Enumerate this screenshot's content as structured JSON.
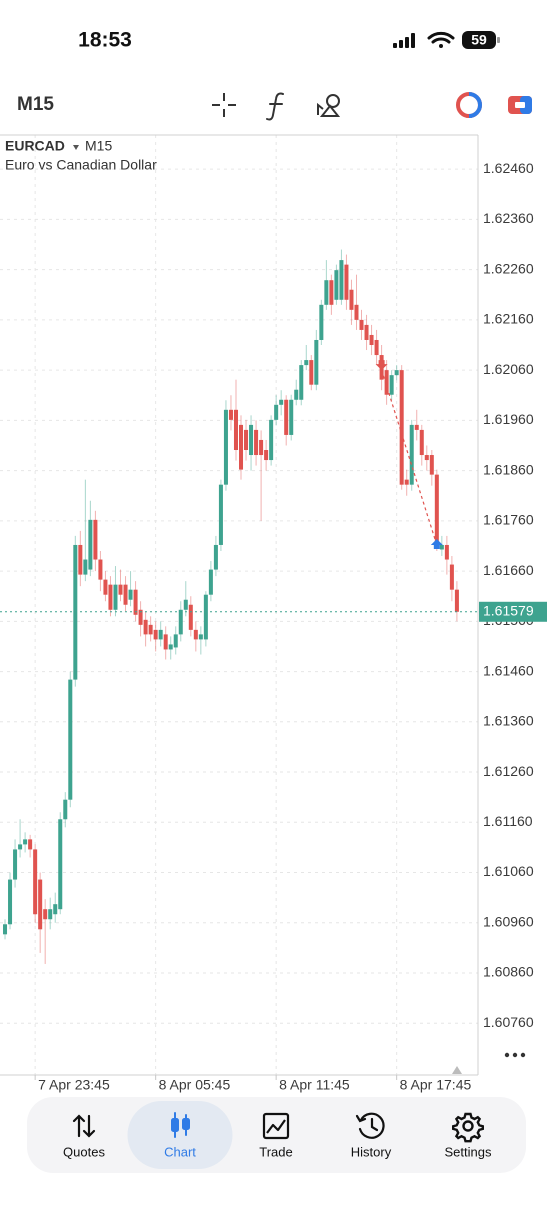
{
  "status_bar": {
    "time": "18:53",
    "battery": "59"
  },
  "toolbar": {
    "timeframe": "M15"
  },
  "chart_data": {
    "type": "candlestick",
    "symbol": "EURCAD",
    "timeframe": "M15",
    "description": "Euro vs Canadian Dollar",
    "up_color": "#3ea38f",
    "down_color": "#e0534f",
    "open": [
      1.60937,
      1.60957,
      1.61046,
      1.61106,
      1.61116,
      1.61126,
      1.61106,
      1.61046,
      1.60987,
      1.60967,
      1.60977,
      1.60987,
      1.61166,
      1.61205,
      1.61444,
      1.61712,
      1.61653,
      1.61663,
      1.61762,
      1.61683,
      1.61643,
      1.61633,
      1.61583,
      1.61633,
      1.61633,
      1.61603,
      1.61623,
      1.61583,
      1.61563,
      1.61553,
      1.61543,
      1.61524,
      1.61534,
      1.61504,
      1.61508,
      1.61534,
      1.61583,
      1.61593,
      1.61543,
      1.61524,
      1.61524,
      1.61613,
      1.61663,
      1.61712,
      1.61832,
      1.61981,
      1.61981,
      1.61951,
      1.61941,
      1.61891,
      1.61941,
      1.61921,
      1.61901,
      1.61881,
      1.61961,
      1.61991,
      1.62001,
      1.61931,
      1.62001,
      1.62001,
      1.6207,
      1.6208,
      1.62031,
      1.6212,
      1.6219,
      1.62239,
      1.622,
      1.622,
      1.6227,
      1.6222,
      1.6219,
      1.6216,
      1.6215,
      1.6213,
      1.6212,
      1.6209,
      1.6206,
      1.62011,
      1.6205,
      1.6206,
      1.61842,
      1.61832,
      1.61951,
      1.61941,
      1.61891,
      1.61891,
      1.61852,
      1.61703,
      1.61712,
      1.61673,
      1.61623
    ],
    "high": [
      1.60967,
      1.6106,
      1.61126,
      1.61166,
      1.6114,
      1.61135,
      1.61116,
      1.6106,
      1.61007,
      1.6101,
      1.6102,
      1.6118,
      1.6122,
      1.6146,
      1.6173,
      1.6174,
      1.61842,
      1.618,
      1.6178,
      1.617,
      1.6166,
      1.6165,
      1.6167,
      1.61663,
      1.6165,
      1.6166,
      1.6164,
      1.616,
      1.6158,
      1.6157,
      1.6156,
      1.6156,
      1.6155,
      1.6153,
      1.6155,
      1.616,
      1.6164,
      1.6161,
      1.6156,
      1.6155,
      1.6162,
      1.6168,
      1.6173,
      1.61842,
      1.62,
      1.6201,
      1.62041,
      1.6197,
      1.61961,
      1.6197,
      1.6196,
      1.6194,
      1.61921,
      1.6197,
      1.6201,
      1.6202,
      1.6201,
      1.62011,
      1.62041,
      1.6208,
      1.6211,
      1.6209,
      1.6214,
      1.622,
      1.62279,
      1.6225,
      1.6227,
      1.623,
      1.6229,
      1.6224,
      1.6225,
      1.6218,
      1.6217,
      1.6215,
      1.6214,
      1.6211,
      1.6208,
      1.6206,
      1.6207,
      1.6207,
      1.61862,
      1.61961,
      1.61981,
      1.61951,
      1.6191,
      1.61901,
      1.61862,
      1.6173,
      1.6173,
      1.6169,
      1.6164
    ],
    "low": [
      1.60927,
      1.60947,
      1.6103,
      1.6109,
      1.611,
      1.6109,
      1.6096,
      1.609,
      1.60878,
      1.60947,
      1.6096,
      1.60977,
      1.6115,
      1.6119,
      1.6143,
      1.6163,
      1.6164,
      1.6165,
      1.6166,
      1.6162,
      1.616,
      1.6157,
      1.6157,
      1.616,
      1.6158,
      1.6159,
      1.6156,
      1.6153,
      1.6151,
      1.6152,
      1.615,
      1.6151,
      1.61484,
      1.61484,
      1.61494,
      1.6152,
      1.6157,
      1.6153,
      1.615,
      1.61494,
      1.6151,
      1.616,
      1.6165,
      1.617,
      1.6182,
      1.6194,
      1.6188,
      1.61842,
      1.6188,
      1.6186,
      1.6187,
      1.6176,
      1.6186,
      1.6187,
      1.6195,
      1.6197,
      1.6191,
      1.6192,
      1.6199,
      1.6199,
      1.6206,
      1.6202,
      1.6202,
      1.6211,
      1.6218,
      1.6217,
      1.6219,
      1.6219,
      1.6218,
      1.6215,
      1.6214,
      1.6212,
      1.621,
      1.6209,
      1.6207,
      1.6202,
      1.61991,
      1.62,
      1.6204,
      1.61822,
      1.6181,
      1.6182,
      1.6192,
      1.6187,
      1.6186,
      1.6183,
      1.617,
      1.6169,
      1.61653,
      1.616,
      1.6156
    ],
    "close": [
      1.60957,
      1.61046,
      1.61106,
      1.61116,
      1.61126,
      1.61106,
      1.60977,
      1.60947,
      1.60967,
      1.60987,
      1.60997,
      1.61166,
      1.61205,
      1.61444,
      1.61712,
      1.61653,
      1.61683,
      1.61762,
      1.61683,
      1.61643,
      1.61613,
      1.61583,
      1.61633,
      1.61613,
      1.61593,
      1.61623,
      1.61573,
      1.61553,
      1.61534,
      1.61534,
      1.61524,
      1.61543,
      1.61504,
      1.61514,
      1.61534,
      1.61583,
      1.61603,
      1.61543,
      1.61524,
      1.61534,
      1.61613,
      1.61663,
      1.61712,
      1.61832,
      1.61981,
      1.61961,
      1.61901,
      1.61862,
      1.61901,
      1.61951,
      1.61891,
      1.61891,
      1.61881,
      1.61961,
      1.61991,
      1.62001,
      1.61931,
      1.62001,
      1.62021,
      1.6207,
      1.6208,
      1.62031,
      1.6212,
      1.6219,
      1.62239,
      1.6219,
      1.62259,
      1.62279,
      1.622,
      1.6218,
      1.6216,
      1.6214,
      1.6212,
      1.6211,
      1.6209,
      1.62041,
      1.62011,
      1.6205,
      1.6206,
      1.61832,
      1.61832,
      1.61951,
      1.61941,
      1.61891,
      1.61881,
      1.61852,
      1.61712,
      1.61712,
      1.61683,
      1.61623,
      1.61579
    ],
    "current_price": 1.61579,
    "current_price_color": "#3ea38f",
    "trade": {
      "open_index": 75,
      "open_price": 1.6206,
      "close_index": 86,
      "close_price": 1.61712,
      "open_color": "#e0534f",
      "close_color": "#2f7be6",
      "line_color": "#e0534f"
    },
    "xlim": [
      -1,
      94.2
    ],
    "xticks": [
      {
        "value": 6,
        "label": "7 Apr 23:45"
      },
      {
        "value": 30,
        "label": "8 Apr 05:45"
      },
      {
        "value": 54,
        "label": "8 Apr 11:45"
      },
      {
        "value": 78,
        "label": "8 Apr 17:45"
      }
    ],
    "ylim": [
      1.60657,
      1.62528
    ],
    "yticks": [
      {
        "value": 1.6246,
        "label": "1.62460"
      },
      {
        "value": 1.6236,
        "label": "1.62360"
      },
      {
        "value": 1.6226,
        "label": "1.62260"
      },
      {
        "value": 1.6216,
        "label": "1.62160"
      },
      {
        "value": 1.6206,
        "label": "1.62060"
      },
      {
        "value": 1.6196,
        "label": "1.61960"
      },
      {
        "value": 1.6186,
        "label": "1.61860"
      },
      {
        "value": 1.6176,
        "label": "1.61760"
      },
      {
        "value": 1.6166,
        "label": "1.61660"
      },
      {
        "value": 1.6156,
        "label": "1.61560"
      },
      {
        "value": 1.6146,
        "label": "1.61460"
      },
      {
        "value": 1.6136,
        "label": "1.61360"
      },
      {
        "value": 1.6126,
        "label": "1.61260"
      },
      {
        "value": 1.6116,
        "label": "1.61160"
      },
      {
        "value": 1.6106,
        "label": "1.61060"
      },
      {
        "value": 1.6096,
        "label": "1.60960"
      },
      {
        "value": 1.6086,
        "label": "1.60860"
      },
      {
        "value": 1.6076,
        "label": "1.60760"
      }
    ],
    "grid": true
  },
  "tab_bar": {
    "tabs": [
      "Quotes",
      "Chart",
      "Trade",
      "History",
      "Settings"
    ],
    "selected": 1
  }
}
